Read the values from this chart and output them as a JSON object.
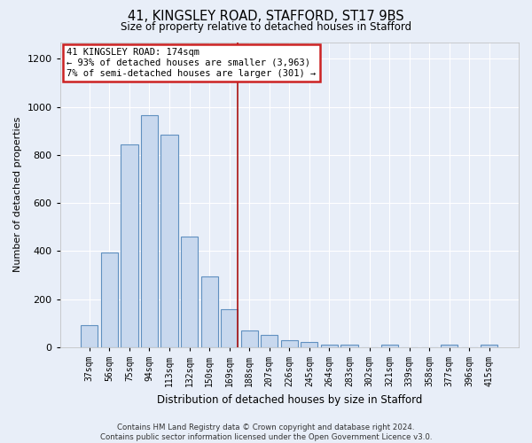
{
  "title1": "41, KINGSLEY ROAD, STAFFORD, ST17 9BS",
  "title2": "Size of property relative to detached houses in Stafford",
  "xlabel": "Distribution of detached houses by size in Stafford",
  "ylabel": "Number of detached properties",
  "categories": [
    "37sqm",
    "56sqm",
    "75sqm",
    "94sqm",
    "113sqm",
    "132sqm",
    "150sqm",
    "169sqm",
    "188sqm",
    "207sqm",
    "226sqm",
    "245sqm",
    "264sqm",
    "283sqm",
    "302sqm",
    "321sqm",
    "339sqm",
    "358sqm",
    "377sqm",
    "396sqm",
    "415sqm"
  ],
  "values": [
    90,
    395,
    845,
    965,
    885,
    460,
    295,
    160,
    70,
    50,
    30,
    20,
    10,
    10,
    0,
    10,
    0,
    0,
    10,
    0,
    10
  ],
  "bar_color": "#c8d8ee",
  "bar_edge_color": "#6090c0",
  "subject_bin_index": 7,
  "annotation_line1": "41 KINGSLEY ROAD: 174sqm",
  "annotation_line2": "← 93% of detached houses are smaller (3,963)",
  "annotation_line3": "7% of semi-detached houses are larger (301) →",
  "annotation_box_color": "#ffffff",
  "annotation_border_color": "#cc2222",
  "vline_color": "#aa1111",
  "ylim": [
    0,
    1270
  ],
  "yticks": [
    0,
    200,
    400,
    600,
    800,
    1000,
    1200
  ],
  "background_color": "#e8eef8",
  "grid_color": "#ffffff",
  "footer1": "Contains HM Land Registry data © Crown copyright and database right 2024.",
  "footer2": "Contains public sector information licensed under the Open Government Licence v3.0."
}
